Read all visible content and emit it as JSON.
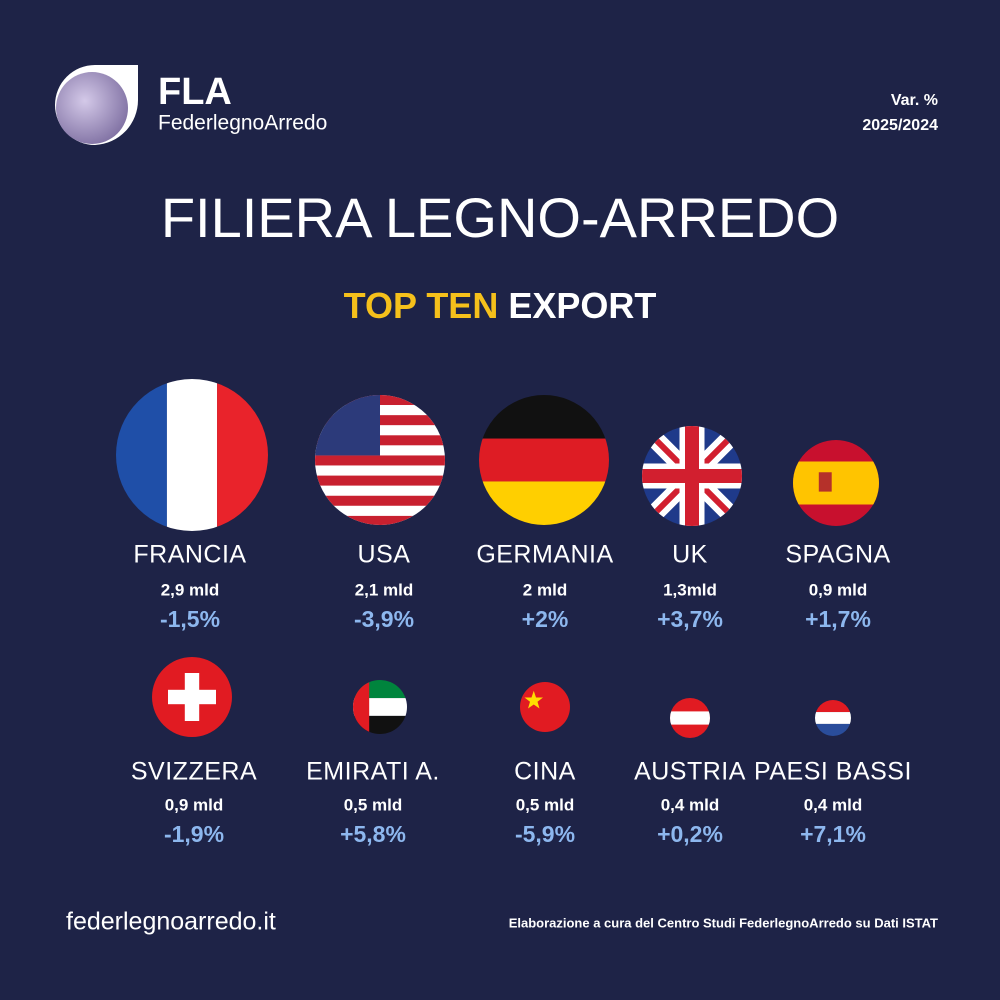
{
  "header": {
    "logo": "FLA",
    "brand": "FederlegnoArredo",
    "var_label": "Var. %",
    "period": "2025/2024"
  },
  "title": "FILIERA LEGNO-ARREDO",
  "subtitle": {
    "highlight": "TOP TEN",
    "rest": "EXPORT"
  },
  "countries": [
    {
      "name": "FRANCIA",
      "export": "2,9 mld",
      "change": "-1,5%"
    },
    {
      "name": "USA",
      "export": "2,1 mld",
      "change": "-3,9%"
    },
    {
      "name": "GERMANIA",
      "export": "2 mld",
      "change": "+2%"
    },
    {
      "name": "UK",
      "export": "1,3mld",
      "change": "+3,7%"
    },
    {
      "name": "SPAGNA",
      "export": "0,9 mld",
      "change": "+1,7%"
    },
    {
      "name": "SVIZZERA",
      "export": "0,9 mld",
      "change": "-1,9%"
    },
    {
      "name": "EMIRATI A.",
      "export": "0,5 mld",
      "change": "+5,8%"
    },
    {
      "name": "CINA",
      "export": "0,5 mld",
      "change": "-5,9%"
    },
    {
      "name": "AUSTRIA",
      "export": "0,4 mld",
      "change": "+0,2%"
    },
    {
      "name": "PAESI BASSI",
      "export": "0,4 mld",
      "change": "+7,1%"
    }
  ],
  "footer": {
    "website": "federlegnoarredo.it",
    "source": "Elaborazione a cura del Centro Studi FederlegnoArredo su Dati ISTAT"
  }
}
